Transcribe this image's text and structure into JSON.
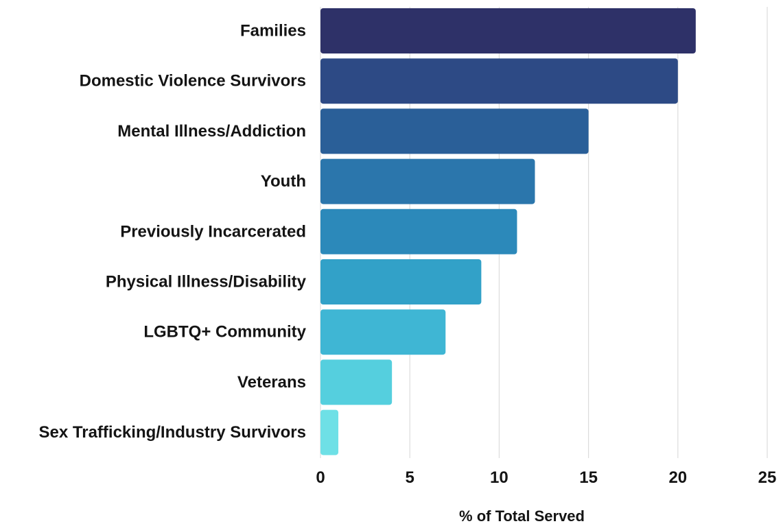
{
  "chart_data": {
    "type": "bar",
    "orientation": "horizontal",
    "categories": [
      "Families",
      "Domestic Violence Survivors",
      "Mental Illness/Addiction",
      "Youth",
      "Previously Incarcerated",
      "Physical Illness/Disability",
      "LGBTQ+ Community",
      "Veterans",
      "Sex Trafficking/Industry Survivors"
    ],
    "values": [
      21,
      20,
      15,
      12,
      11,
      9,
      7,
      4,
      1
    ],
    "colors": [
      "#2e3168",
      "#2d4a85",
      "#2a5f98",
      "#2b76ac",
      "#2c89ba",
      "#32a1c8",
      "#3fb6d4",
      "#55cfde",
      "#6ee0e6"
    ],
    "xlabel": "% of Total Served",
    "ylabel": "",
    "title": "",
    "xlim": [
      0,
      25
    ],
    "xticks": [
      0,
      5,
      10,
      15,
      20,
      25
    ],
    "grid": true
  }
}
